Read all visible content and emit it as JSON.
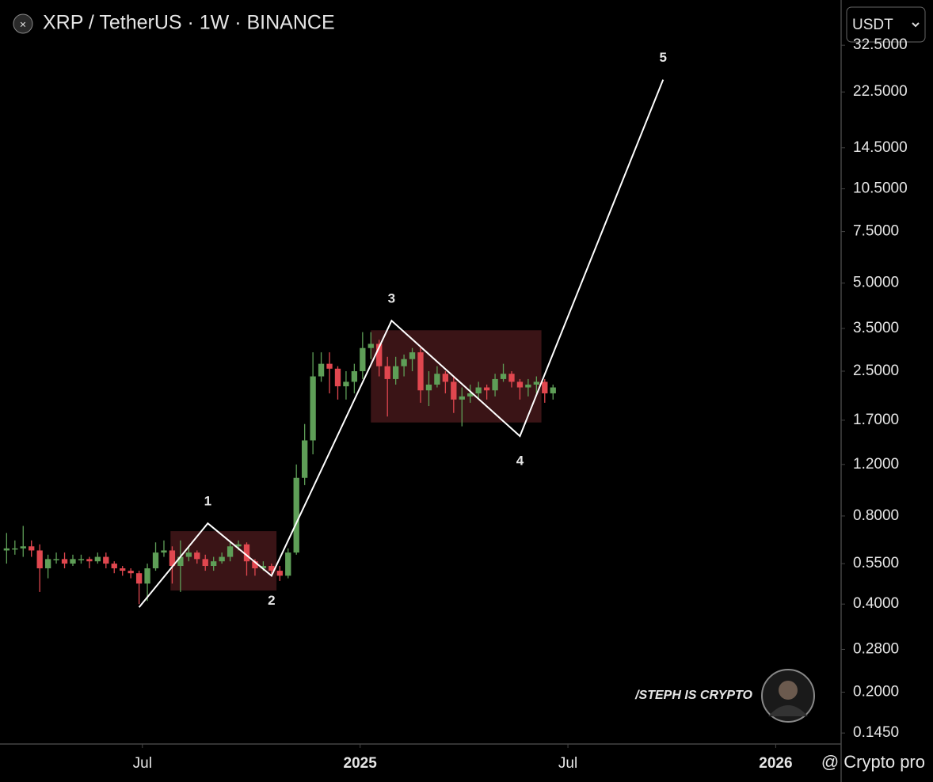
{
  "chart_data": {
    "type": "candlestick",
    "title": "XRP / TetherUS · 1W · BINANCE",
    "currency": "USDT",
    "watermark": "/STEPH IS CRYPTO",
    "footer_watermark": "@ Crypto pro",
    "log_scale": true,
    "up_color": "#5e9e57",
    "down_color": "#e0474f",
    "xlim": [
      -0.8,
      100.8
    ],
    "xticks": [
      {
        "value": 16.4,
        "label": "Jul"
      },
      {
        "value": 42.7,
        "label": "2025"
      },
      {
        "value": 67.8,
        "label": "Jul"
      },
      {
        "value": 92.9,
        "label": "2026"
      }
    ],
    "ylim": [
      0.133,
      46.4
    ],
    "yticks": [
      {
        "value": 32.5,
        "label": "32.5000"
      },
      {
        "value": 22.5,
        "label": "22.5000"
      },
      {
        "value": 14.5,
        "label": "14.5000"
      },
      {
        "value": 10.5,
        "label": "10.5000"
      },
      {
        "value": 7.5,
        "label": "7.5000"
      },
      {
        "value": 5,
        "label": "5.0000"
      },
      {
        "value": 3.5,
        "label": "3.5000"
      },
      {
        "value": 2.5,
        "label": "2.5000"
      },
      {
        "value": 1.7,
        "label": "1.7000"
      },
      {
        "value": 1.2,
        "label": "1.2000"
      },
      {
        "value": 0.8,
        "label": "0.8000"
      },
      {
        "value": 0.55,
        "label": "0.5500"
      },
      {
        "value": 0.4,
        "label": "0.4000"
      },
      {
        "value": 0.28,
        "label": "0.2800"
      },
      {
        "value": 0.2,
        "label": "0.2000"
      },
      {
        "value": 0.145,
        "label": "0.1450"
      }
    ],
    "open": [
      0.61,
      0.62,
      0.62,
      0.63,
      0.61,
      0.53,
      0.57,
      0.57,
      0.55,
      0.57,
      0.57,
      0.56,
      0.58,
      0.55,
      0.53,
      0.52,
      0.51,
      0.47,
      0.53,
      0.6,
      0.61,
      0.54,
      0.58,
      0.6,
      0.57,
      0.54,
      0.56,
      0.58,
      0.63,
      0.64,
      0.56,
      0.53,
      0.54,
      0.52,
      0.5,
      0.6,
      1.08,
      1.45,
      2.4,
      2.65,
      2.55,
      2.22,
      2.3,
      2.5,
      3.0,
      3.1,
      2.6,
      2.35,
      2.6,
      2.75,
      2.9,
      2.15,
      2.25,
      2.45,
      2.3,
      2.0,
      2.05,
      2.1,
      2.2,
      2.15,
      2.35,
      2.45,
      2.3,
      2.2,
      2.25,
      2.3,
      2.1
    ],
    "high": [
      0.7,
      0.66,
      0.74,
      0.66,
      0.64,
      0.59,
      0.6,
      0.6,
      0.59,
      0.59,
      0.58,
      0.6,
      0.6,
      0.56,
      0.54,
      0.53,
      0.52,
      0.55,
      0.65,
      0.66,
      0.63,
      0.66,
      0.63,
      0.61,
      0.59,
      0.58,
      0.6,
      0.65,
      0.66,
      0.65,
      0.57,
      0.56,
      0.55,
      0.54,
      0.62,
      1.2,
      1.65,
      2.9,
      2.9,
      2.9,
      2.6,
      2.5,
      2.65,
      3.4,
      3.4,
      3.2,
      2.8,
      2.8,
      2.85,
      3.0,
      3.0,
      2.5,
      2.6,
      2.5,
      2.4,
      2.2,
      2.25,
      2.3,
      2.25,
      2.45,
      2.65,
      2.5,
      2.35,
      2.35,
      2.4,
      2.35,
      2.25
    ],
    "low": [
      0.55,
      0.59,
      0.58,
      0.58,
      0.44,
      0.49,
      0.55,
      0.53,
      0.54,
      0.55,
      0.53,
      0.55,
      0.53,
      0.51,
      0.5,
      0.49,
      0.4,
      0.41,
      0.52,
      0.58,
      0.47,
      0.44,
      0.56,
      0.55,
      0.52,
      0.52,
      0.55,
      0.56,
      0.61,
      0.5,
      0.5,
      0.52,
      0.5,
      0.48,
      0.49,
      0.59,
      1.02,
      1.3,
      2.3,
      2.1,
      2.0,
      2.0,
      2.1,
      2.35,
      2.75,
      2.4,
      1.75,
      2.25,
      2.4,
      2.5,
      1.95,
      1.9,
      2.2,
      2.1,
      1.8,
      1.62,
      1.95,
      2.0,
      2.0,
      2.05,
      2.3,
      2.2,
      2.0,
      2.05,
      2.1,
      1.95,
      2.0
    ],
    "close": [
      0.62,
      0.62,
      0.63,
      0.61,
      0.53,
      0.57,
      0.57,
      0.55,
      0.57,
      0.57,
      0.56,
      0.58,
      0.55,
      0.53,
      0.52,
      0.51,
      0.47,
      0.53,
      0.6,
      0.61,
      0.54,
      0.58,
      0.6,
      0.57,
      0.54,
      0.56,
      0.58,
      0.63,
      0.64,
      0.56,
      0.53,
      0.54,
      0.52,
      0.5,
      0.6,
      1.08,
      1.45,
      2.4,
      2.65,
      2.55,
      2.22,
      2.3,
      2.5,
      3.0,
      3.1,
      2.6,
      2.35,
      2.6,
      2.75,
      2.9,
      2.15,
      2.25,
      2.45,
      2.3,
      2.0,
      2.05,
      2.1,
      2.2,
      2.15,
      2.35,
      2.45,
      2.3,
      2.2,
      2.25,
      2.3,
      2.1,
      2.2
    ],
    "zones": [
      {
        "x": [
          19.8,
          32.6
        ],
        "y": [
          0.445,
          0.71
        ]
      },
      {
        "x": [
          44.0,
          64.6
        ],
        "y": [
          1.67,
          3.45
        ]
      }
    ],
    "zone_color": "#3a1416",
    "wave": {
      "labels": [
        null,
        "1",
        "2",
        "3",
        "4",
        "5"
      ],
      "x": [
        16.0,
        24.3,
        32.0,
        46.5,
        62.0,
        79.3
      ],
      "y": [
        0.39,
        0.755,
        0.5,
        3.72,
        1.5,
        24.8
      ],
      "color": "#ffffff"
    }
  }
}
